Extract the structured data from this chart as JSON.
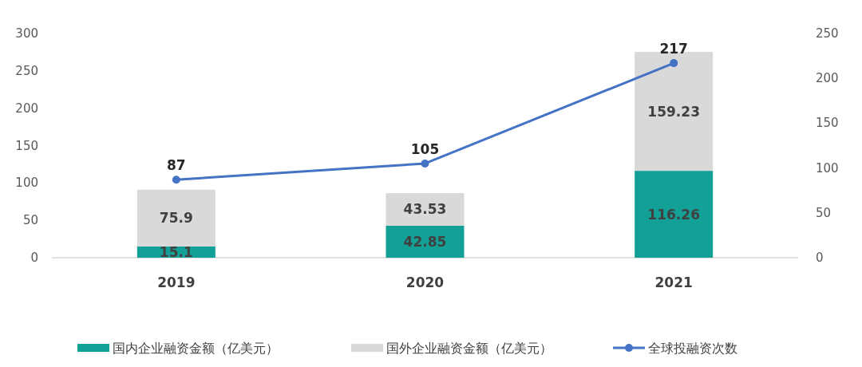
{
  "chart_data": {
    "type": "bar",
    "categories": [
      "2019",
      "2020",
      "2021"
    ],
    "stacked": true,
    "series": [
      {
        "name": "国内企业融资金额（亿美元）",
        "color": "#12a097",
        "values": [
          15.1,
          42.85,
          116.26
        ]
      },
      {
        "name": "国外企业融资金额（亿美元）",
        "color": "#d9d9d9",
        "values": [
          75.9,
          43.53,
          159.23
        ]
      },
      {
        "name": "全球投融资次数",
        "type": "line",
        "axis": "y2",
        "color": "#4472c4",
        "values": [
          87,
          105,
          217
        ]
      }
    ],
    "ylim": [
      0,
      300
    ],
    "yticks": [
      0,
      50,
      100,
      150,
      200,
      250,
      300
    ],
    "y2lim": [
      0,
      250
    ],
    "y2ticks": [
      0,
      50,
      100,
      150,
      200,
      250
    ],
    "data_labels": true,
    "legend": "bottom",
    "marker": "circle",
    "line_style": "solid",
    "grid": false
  }
}
